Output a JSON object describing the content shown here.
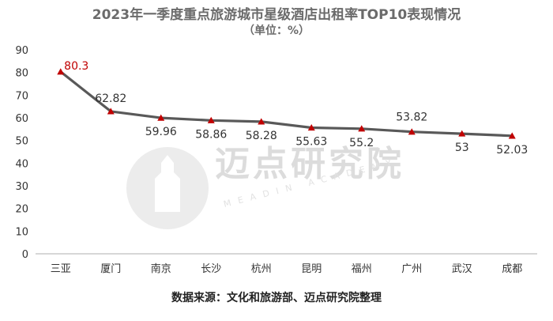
{
  "header": {
    "title": "2023年一季度重点旅游城市星级酒店出租率TOP10表现情况",
    "subtitle": "（单位：%）"
  },
  "footer": {
    "source": "数据来源：文化和旅游部、迈点研究院整理"
  },
  "watermark": {
    "text": "迈点研究院",
    "subtext": "MEADIN ACADEMY"
  },
  "colors": {
    "line": "#595959",
    "marker": "#c00000",
    "accent_label": "#c00000",
    "axis": "#bfbfbf"
  },
  "chart_data": {
    "type": "line",
    "title": "2023年一季度重点旅游城市星级酒店出租率TOP10表现情况",
    "subtitle": "（单位：%）",
    "xlabel": "",
    "ylabel": "",
    "categories": [
      "三亚",
      "厦门",
      "南京",
      "长沙",
      "杭州",
      "昆明",
      "福州",
      "广州",
      "武汉",
      "成都"
    ],
    "values": [
      80.3,
      62.82,
      59.96,
      58.86,
      58.28,
      55.63,
      55.2,
      53.82,
      53,
      52.03
    ],
    "value_labels": [
      "80.3",
      "62.82",
      "59.96",
      "58.86",
      "58.28",
      "55.63",
      "55.2",
      "53.82",
      "53",
      "52.03"
    ],
    "ylim": [
      0,
      90
    ],
    "yticks": [
      "0",
      "10",
      "20",
      "30",
      "40",
      "50",
      "60",
      "70",
      "80",
      "90"
    ],
    "grid": false,
    "legend": "none",
    "marker": "triangle"
  }
}
